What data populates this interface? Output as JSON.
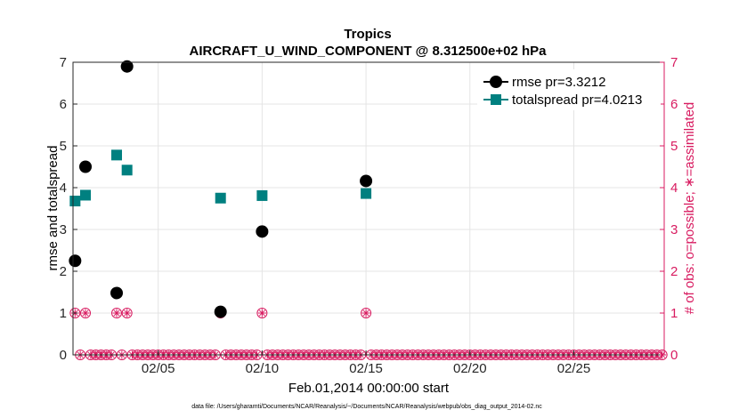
{
  "chart_data": {
    "type": "scatter",
    "title": "Tropics",
    "subtitle": "AIRCRAFT_U_WIND_COMPONENT @ 8.312500e+02 hPa",
    "xlabel": "Feb.01,2014 00:00:00 start",
    "ylabel_left": "rmse and totalspread",
    "ylabel_right": "# of obs: o=possible; ∗=assimilated",
    "footnote": "data file: /Users/gharamti/Documents/NCAR/Reanalysis/~/Documents/NCAR/Reanalysis/webpub/obs_diag_output_2014-02.nc",
    "xlim": [
      0.4,
      28.85
    ],
    "x_tick_values": [
      4.5,
      9.5,
      14.5,
      19.5,
      24.5
    ],
    "x_tick_labels": [
      "02/05",
      "02/10",
      "02/15",
      "02/20",
      "02/25"
    ],
    "ylim_left": [
      0,
      7
    ],
    "ylim_right": [
      0,
      7
    ],
    "y_ticks_left": [
      "0",
      "1",
      "2",
      "3",
      "4",
      "5",
      "6",
      "7"
    ],
    "y_ticks_right": [
      "0",
      "1",
      "2",
      "3",
      "4",
      "5",
      "6",
      "7"
    ],
    "grid": true,
    "legend_position": "top-right",
    "colors": {
      "rmse": "#000000",
      "totalspread": "#008080",
      "obs": "#d81b60",
      "grid": "#e4e4e4"
    },
    "series": [
      {
        "name": "rmse pr=3.3212",
        "marker": "circle",
        "points": [
          [
            0.5,
            2.25
          ],
          [
            1.0,
            4.5
          ],
          [
            2.5,
            1.48
          ],
          [
            3.0,
            6.9
          ],
          [
            7.5,
            1.03
          ],
          [
            9.5,
            2.95
          ],
          [
            14.5,
            4.16
          ]
        ]
      },
      {
        "name": "totalspread pr=4.0213",
        "marker": "square",
        "points": [
          [
            0.5,
            3.68
          ],
          [
            1.0,
            3.82
          ],
          [
            2.5,
            4.78
          ],
          [
            3.0,
            4.42
          ],
          [
            7.5,
            3.75
          ],
          [
            9.5,
            3.81
          ],
          [
            14.5,
            3.86
          ]
        ]
      }
    ],
    "obs_counts": {
      "x_start": 0.5,
      "x_step": 0.25,
      "values": [
        1,
        0,
        1,
        0,
        0,
        0,
        0,
        0,
        1,
        0,
        1,
        0,
        0,
        0,
        0,
        0,
        0,
        0,
        0,
        0,
        0,
        0,
        0,
        0,
        0,
        0,
        0,
        0,
        1,
        0,
        0,
        0,
        0,
        0,
        0,
        0,
        1,
        0,
        0,
        0,
        0,
        0,
        0,
        0,
        0,
        0,
        0,
        0,
        0,
        0,
        0,
        0,
        0,
        0,
        0,
        0,
        1,
        0,
        0,
        0,
        0,
        0,
        0,
        0,
        0,
        0,
        0,
        0,
        0,
        0,
        0,
        0,
        0,
        0,
        0,
        0,
        0,
        0,
        0,
        0,
        0,
        0,
        0,
        0,
        0,
        0,
        0,
        0,
        0,
        0,
        0,
        0,
        0,
        0,
        0,
        0,
        0,
        0,
        0,
        0,
        0,
        0,
        0,
        0,
        0,
        0,
        0,
        0,
        0,
        0,
        0,
        0,
        0,
        0
      ]
    },
    "assimilated_counts": {
      "x_start": 0.5,
      "x_step": 0.25,
      "values": [
        1,
        0,
        1,
        0,
        0,
        0,
        0,
        0,
        1,
        0,
        1,
        0,
        0,
        0,
        0,
        0,
        0,
        0,
        0,
        0,
        0,
        0,
        0,
        0,
        0,
        0,
        0,
        0,
        1,
        0,
        0,
        0,
        0,
        0,
        0,
        0,
        1,
        0,
        0,
        0,
        0,
        0,
        0,
        0,
        0,
        0,
        0,
        0,
        0,
        0,
        0,
        0,
        0,
        0,
        0,
        0,
        1,
        0,
        0,
        0,
        0,
        0,
        0,
        0,
        0,
        0,
        0,
        0,
        0,
        0,
        0,
        0,
        0,
        0,
        0,
        0,
        0,
        0,
        0,
        0,
        0,
        0,
        0,
        0,
        0,
        0,
        0,
        0,
        0,
        0,
        0,
        0,
        0,
        0,
        0,
        0,
        0,
        0,
        0,
        0,
        0,
        0,
        0,
        0,
        0,
        0,
        0,
        0,
        0,
        0,
        0,
        0,
        0,
        0
      ]
    }
  }
}
